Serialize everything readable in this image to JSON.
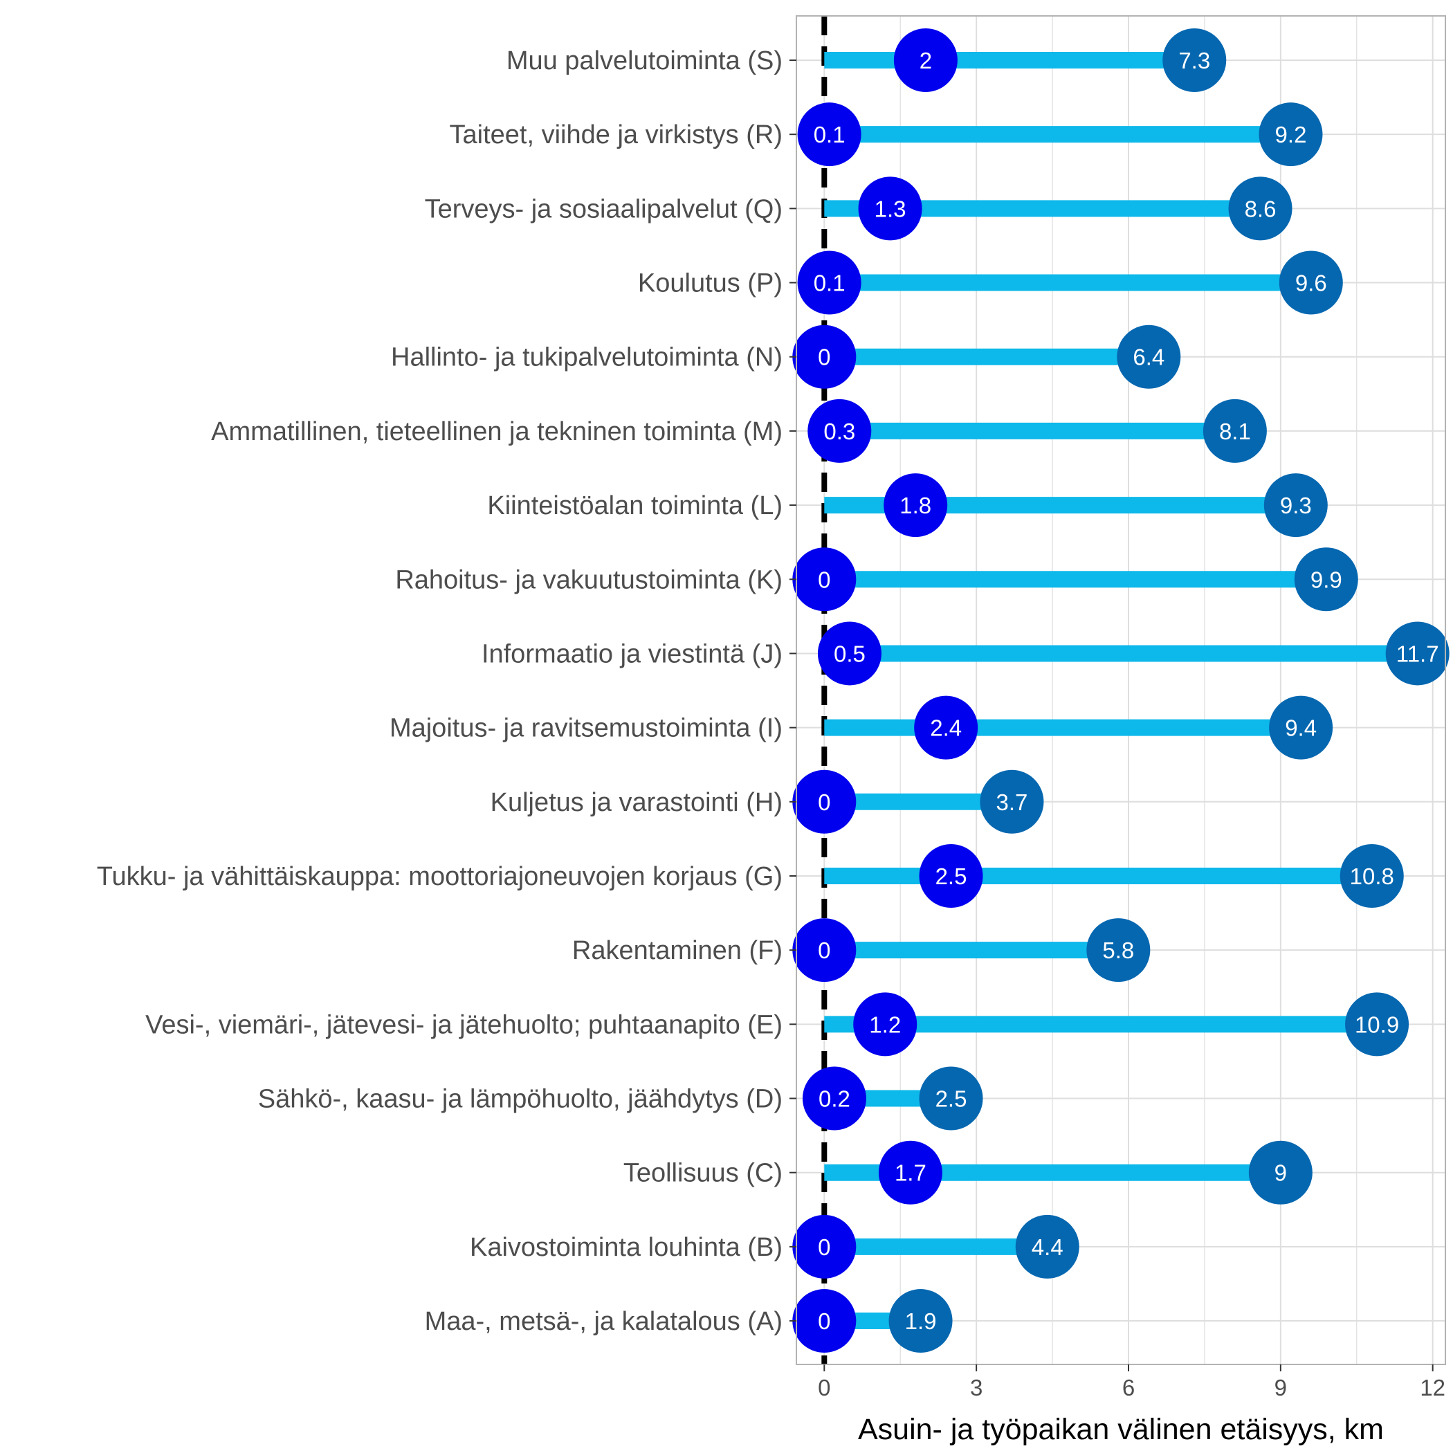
{
  "chart_data": {
    "type": "dumbbell",
    "xlabel": "Asuin- ja työpaikan välinen etäisyys, km",
    "xlim": [
      -0.55,
      12.25
    ],
    "xticks": [
      0,
      3,
      6,
      9,
      12
    ],
    "grid": true,
    "reference_line_x": 0,
    "categories": [
      "Muu palvelutoiminta (S)",
      "Taiteet, viihde ja virkistys (R)",
      "Terveys- ja sosiaalipalvelut (Q)",
      "Koulutus (P)",
      "Hallinto- ja tukipalvelutoiminta (N)",
      "Ammatillinen, tieteellinen ja tekninen toiminta (M)",
      "Kiinteistöalan toiminta (L)",
      "Rahoitus- ja vakuutustoiminta (K)",
      "Informaatio ja viestintä (J)",
      "Majoitus- ja ravitsemustoiminta (I)",
      "Kuljetus ja varastointi (H)",
      "Tukku- ja vähittäiskauppa: moottoriajoneuvojen korjaus (G)",
      "Rakentaminen (F)",
      "Vesi-, viemäri-, jätevesi- ja jätehuolto; puhtaanapito (E)",
      "Sähkö-, kaasu- ja lämpöhuolto, jäähdytys (D)",
      "Teollisuus (C)",
      "Kaivostoiminta louhinta (B)",
      "Maa-, metsä-, ja kalatalous (A)"
    ],
    "series": [
      {
        "values": [
          2,
          0.1,
          1.3,
          0.1,
          0,
          0.3,
          1.8,
          0,
          0.5,
          2.4,
          0,
          2.5,
          0,
          1.2,
          0.2,
          1.7,
          0,
          0
        ]
      },
      {
        "values": [
          7.3,
          9.2,
          8.6,
          9.6,
          6.4,
          8.1,
          9.3,
          9.9,
          11.7,
          9.4,
          3.7,
          10.8,
          5.8,
          10.9,
          2.5,
          9,
          4.4,
          1.9
        ]
      }
    ],
    "colors": {
      "segment": "#0db8ea",
      "low_point": "#0000ee",
      "high_point": "#0567b0",
      "grid": "#dedede",
      "panel_border": "#b3b3b3",
      "reference_line": "#000000"
    }
  }
}
